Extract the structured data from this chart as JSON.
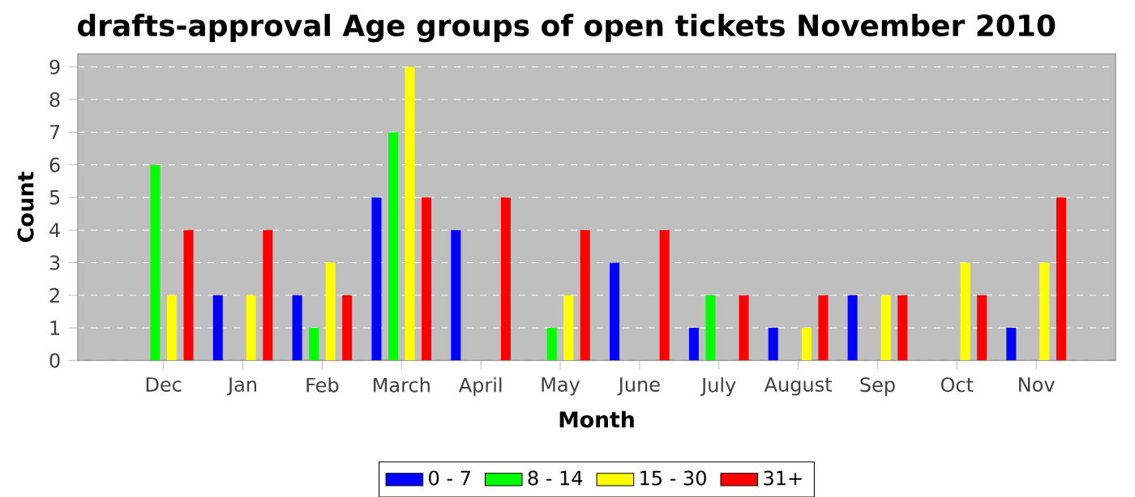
{
  "chart_data": {
    "type": "bar",
    "title": "drafts-approval Age groups of open tickets November 2010",
    "xlabel": "Month",
    "ylabel": "Count",
    "categories": [
      "Dec",
      "Jan",
      "Feb",
      "March",
      "April",
      "May",
      "June",
      "July",
      "August",
      "Sep",
      "Oct",
      "Nov"
    ],
    "series": [
      {
        "name": "0 - 7",
        "color": "#0000ff",
        "values": [
          0,
          2,
          2,
          5,
          4,
          0,
          3,
          1,
          1,
          2,
          0,
          1
        ]
      },
      {
        "name": "8 - 14",
        "color": "#00ff00",
        "values": [
          6,
          0,
          1,
          7,
          0,
          1,
          0,
          2,
          0,
          0,
          0,
          0
        ]
      },
      {
        "name": "15 - 30",
        "color": "#ffff00",
        "values": [
          2,
          2,
          3,
          9,
          0,
          2,
          0,
          0,
          1,
          2,
          3,
          3
        ]
      },
      {
        "name": "31+",
        "color": "#ff0000",
        "values": [
          4,
          4,
          2,
          5,
          5,
          4,
          4,
          2,
          2,
          2,
          2,
          5
        ]
      }
    ],
    "ylim": [
      0,
      9.4
    ],
    "yticks": [
      0,
      1,
      2,
      3,
      4,
      5,
      6,
      7,
      8,
      9
    ],
    "grid": "y",
    "legend": "bottom"
  }
}
